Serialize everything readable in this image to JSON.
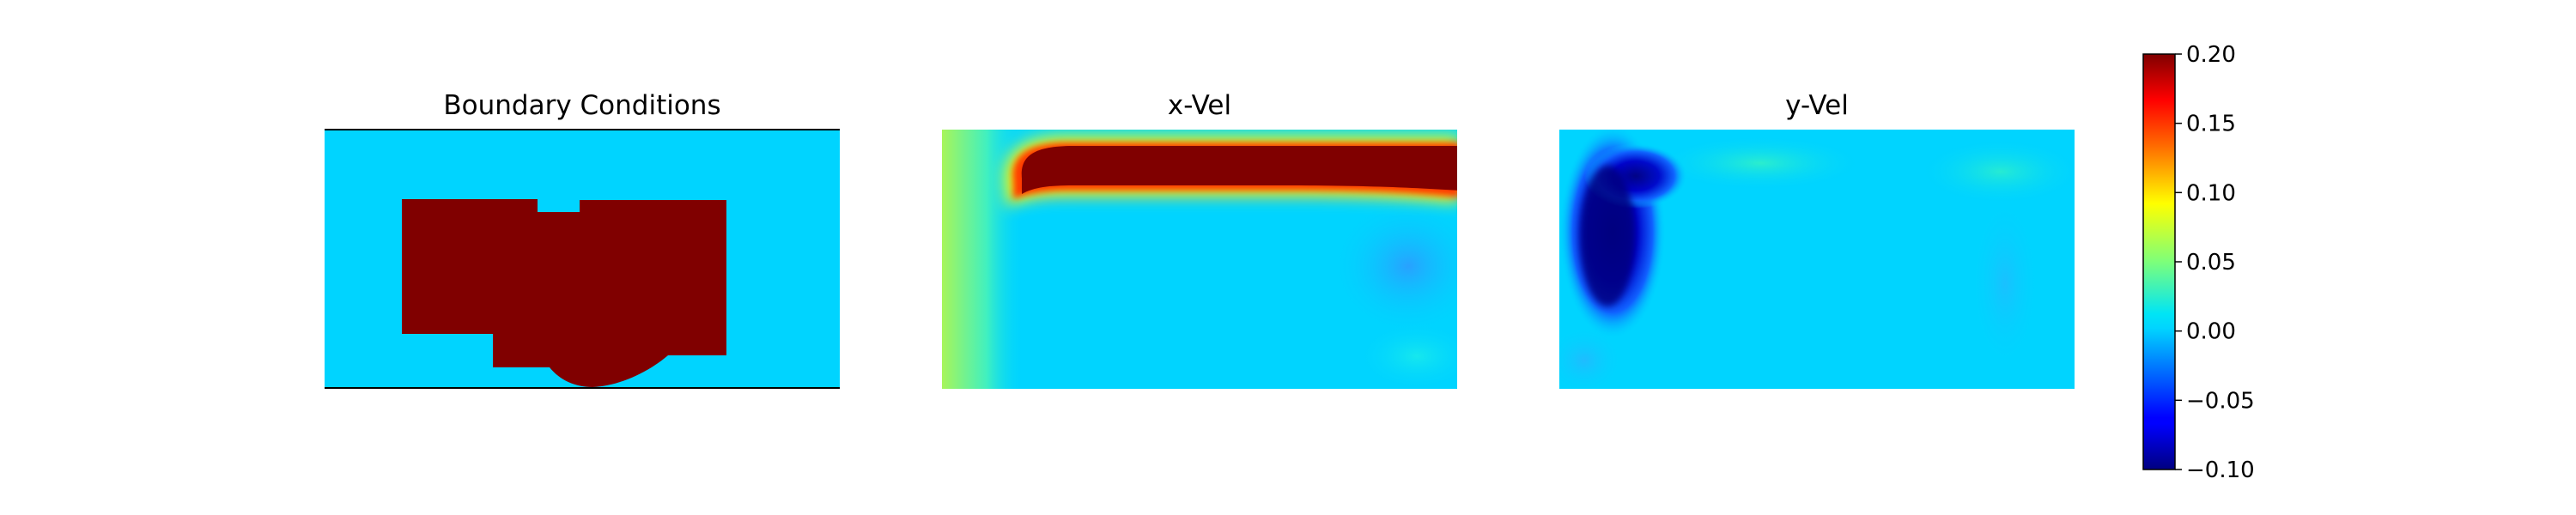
{
  "chart_data": [
    {
      "type": "heatmap",
      "title": "Boundary Conditions",
      "description_values": {
        "background_value": 0.0,
        "obstacle_value": 0.2
      }
    },
    {
      "type": "heatmap",
      "title": "x-Vel"
    },
    {
      "type": "heatmap",
      "title": "y-Vel"
    },
    {
      "type": "colorbar",
      "colormap": "jet",
      "vmin": -0.1,
      "vmax": 0.2,
      "ticks": [
        0.2,
        0.15,
        0.1,
        0.05,
        0.0,
        -0.05,
        -0.1
      ],
      "tick_labels": [
        "0.20",
        "0.15",
        "0.10",
        "0.05",
        "0.00",
        "−0.05",
        "−0.10"
      ]
    }
  ],
  "colors": {
    "background": "#00d4ff",
    "obstacle": "#800000",
    "jet_low": "#000080",
    "jet_high": "#800000"
  }
}
